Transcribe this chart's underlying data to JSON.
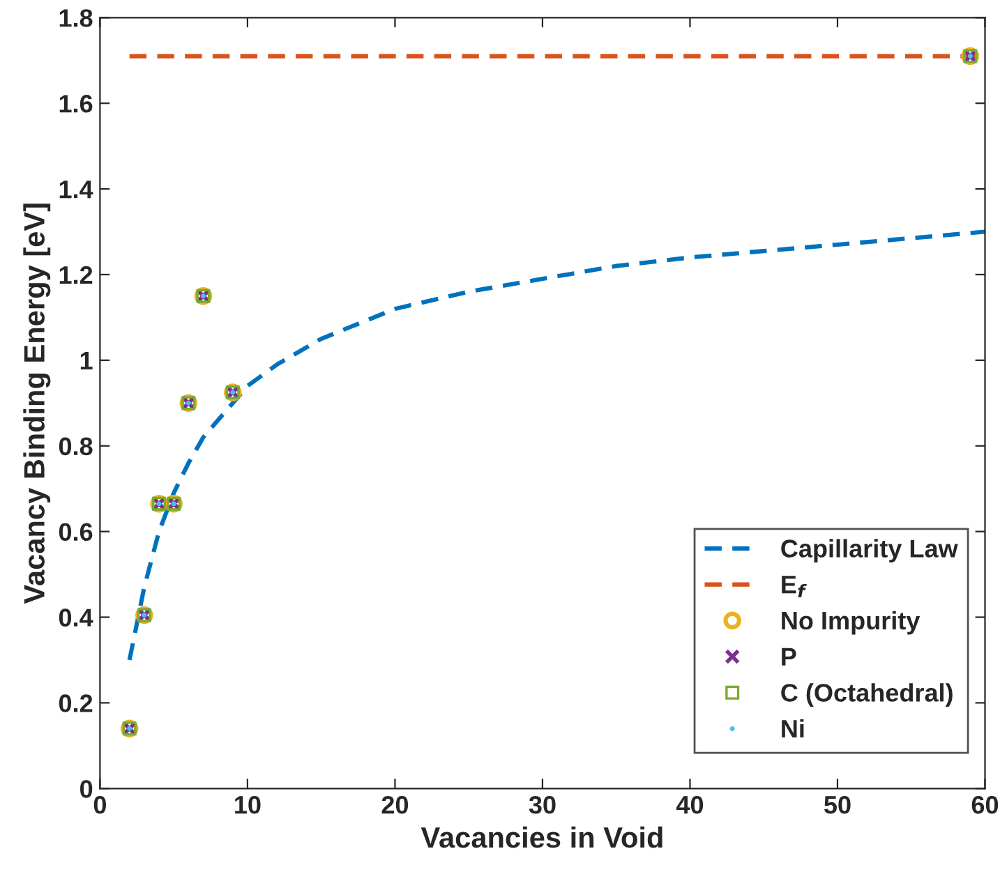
{
  "chart_data": {
    "type": "scatter",
    "xlabel": "Vacancies in Void",
    "ylabel": "Vacancy Binding Energy [eV]",
    "xlim": [
      0,
      60
    ],
    "xticks": [
      0,
      10,
      20,
      30,
      40,
      50,
      60
    ],
    "ylim": [
      0,
      1.8
    ],
    "yticks": [
      0,
      {
        "value": 0.2,
        "label": "0.2"
      },
      {
        "value": 0.4,
        "label": "0.4"
      },
      {
        "value": 0.6,
        "label": "0.6"
      },
      {
        "value": 0.8,
        "label": "0.8"
      },
      1,
      {
        "value": 1.2,
        "label": "1.2"
      },
      {
        "value": 1.4,
        "label": "1.4"
      },
      {
        "value": 1.6,
        "label": "1.6"
      },
      {
        "value": 1.8,
        "label": "1.8"
      }
    ],
    "grid": false,
    "legend": "bottom right",
    "series": [
      {
        "name": "Capillarity Law",
        "type": "line",
        "line_style": "dashed",
        "marker": "none",
        "color": "#0072bd",
        "x": [
          2,
          3,
          4,
          5,
          6,
          7,
          8,
          10,
          12,
          15,
          20,
          25,
          30,
          35,
          40,
          45,
          50,
          55,
          60
        ],
        "values": [
          0.3,
          0.47,
          0.6,
          0.69,
          0.76,
          0.82,
          0.86,
          0.94,
          0.99,
          1.05,
          1.12,
          1.16,
          1.19,
          1.22,
          1.24,
          1.255,
          1.27,
          1.285,
          1.3
        ]
      },
      {
        "name": "E$_{f}$",
        "type": "line",
        "line_style": "dashed",
        "marker": "none",
        "color": "#d95319",
        "x": [
          2,
          60
        ],
        "values": [
          1.71,
          1.71
        ]
      },
      {
        "name": "No Impurity",
        "marker": "circle",
        "color": "#edb120",
        "x": [
          2,
          3,
          4,
          5,
          6,
          7,
          9,
          59
        ],
        "values": [
          0.14,
          0.405,
          0.665,
          0.665,
          0.9,
          1.15,
          0.925,
          1.71
        ]
      },
      {
        "name": "P",
        "marker": "cross",
        "color": "#7e2f8e",
        "x": [
          2,
          3,
          4,
          5,
          6,
          7,
          9,
          59
        ],
        "values": [
          0.14,
          0.405,
          0.665,
          0.665,
          0.9,
          1.15,
          0.925,
          1.71
        ]
      },
      {
        "name": "C (Octahedral)",
        "marker": "square",
        "color": "#77ac30",
        "x": [
          2,
          3,
          4,
          5,
          6,
          7,
          9,
          59
        ],
        "values": [
          0.14,
          0.405,
          0.665,
          0.665,
          0.9,
          1.15,
          0.925,
          1.71
        ]
      },
      {
        "name": "Ni",
        "marker": "point",
        "color": "#4dbeee",
        "x": [
          2,
          3,
          4,
          5,
          6,
          7,
          9,
          59
        ],
        "values": [
          0.14,
          0.405,
          0.665,
          0.665,
          0.9,
          1.15,
          0.925,
          1.71
        ]
      }
    ]
  }
}
